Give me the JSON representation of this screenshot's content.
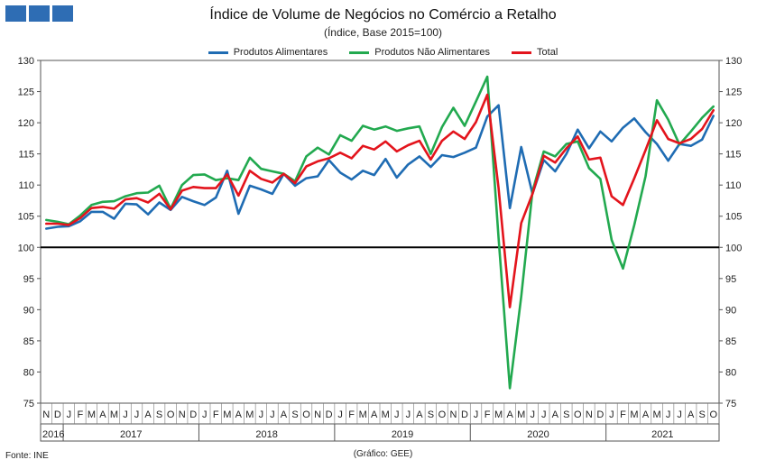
{
  "logo": {
    "color": "#2e6db4"
  },
  "chart_data": {
    "type": "line",
    "title": "Índice de Volume  de Negócios no Comércio a Retalho",
    "subtitle": "(Índice, Base 2015=100)",
    "source": "Fonte: INE",
    "credit": "(Gráfico: GEE)",
    "ylim": [
      75,
      130
    ],
    "yticks": [
      "75",
      "80",
      "85",
      "90",
      "95",
      "100",
      "105",
      "110",
      "115",
      "120",
      "125",
      "130"
    ],
    "reference_line": 100,
    "legend_position": "top-center",
    "grid": false,
    "months": [
      "N",
      "D",
      "J",
      "F",
      "M",
      "A",
      "M",
      "J",
      "J",
      "A",
      "S",
      "O",
      "N",
      "D",
      "J",
      "F",
      "M",
      "A",
      "M",
      "J",
      "J",
      "A",
      "S",
      "O",
      "N",
      "D",
      "J",
      "F",
      "M",
      "A",
      "M",
      "J",
      "J",
      "A",
      "S",
      "O",
      "N",
      "D",
      "J",
      "F",
      "M",
      "A",
      "M",
      "J",
      "J",
      "A",
      "S",
      "O",
      "N",
      "D",
      "J",
      "F",
      "M",
      "A",
      "M",
      "J",
      "J",
      "A",
      "S",
      "O"
    ],
    "years": [
      {
        "label": "2016",
        "start": 0,
        "count": 2
      },
      {
        "label": "2017",
        "start": 2,
        "count": 12
      },
      {
        "label": "2018",
        "start": 14,
        "count": 12
      },
      {
        "label": "2019",
        "start": 26,
        "count": 12
      },
      {
        "label": "2020",
        "start": 38,
        "count": 12
      },
      {
        "label": "2021",
        "start": 50,
        "count": 10
      }
    ],
    "series": [
      {
        "name": "Produtos Alimentares",
        "color": "#1f6cb3",
        "values": [
          103.0,
          103.3,
          103.4,
          104.2,
          105.7,
          105.7,
          104.6,
          107.0,
          106.9,
          105.3,
          107.2,
          106.0,
          108.1,
          107.4,
          106.8,
          108.0,
          112.3,
          105.4,
          109.9,
          109.3,
          108.6,
          111.8,
          109.9,
          111.1,
          111.4,
          114.0,
          112.0,
          110.9,
          112.3,
          111.6,
          114.2,
          111.2,
          113.3,
          114.6,
          112.9,
          114.8,
          114.5,
          115.2,
          116.0,
          121.0,
          122.8,
          106.3,
          116.1,
          108.6,
          114.0,
          112.2,
          115.0,
          118.9,
          115.9,
          118.6,
          117.0,
          119.2,
          120.7,
          118.5,
          116.6,
          113.9,
          116.6,
          116.3,
          117.3,
          121.1
        ]
      },
      {
        "name": "Produtos Não Alimentares",
        "color": "#22a94f",
        "values": [
          104.4,
          104.1,
          103.7,
          105.1,
          106.8,
          107.3,
          107.4,
          108.2,
          108.7,
          108.8,
          109.9,
          106.2,
          110.0,
          111.6,
          111.7,
          110.8,
          111.1,
          110.8,
          114.4,
          112.6,
          112.2,
          111.8,
          110.6,
          114.6,
          116.0,
          114.9,
          118.0,
          117.1,
          119.5,
          118.9,
          119.4,
          118.7,
          119.1,
          119.4,
          115.0,
          119.3,
          122.4,
          119.5,
          123.4,
          127.4,
          101.5,
          77.4,
          92.1,
          109.0,
          115.4,
          114.6,
          116.6,
          117.0,
          112.7,
          111.0,
          101.2,
          96.6,
          103.6,
          111.4,
          123.6,
          120.5,
          116.5,
          118.6,
          120.8,
          122.6
        ]
      },
      {
        "name": "Total",
        "color": "#e3141c",
        "values": [
          103.8,
          103.8,
          103.6,
          104.7,
          106.3,
          106.5,
          106.2,
          107.7,
          107.9,
          107.2,
          108.6,
          106.1,
          109.1,
          109.7,
          109.5,
          109.5,
          111.7,
          108.3,
          112.3,
          111.0,
          110.4,
          111.8,
          110.3,
          113.0,
          113.8,
          114.3,
          115.2,
          114.3,
          116.3,
          115.7,
          117.0,
          115.4,
          116.4,
          117.1,
          114.1,
          117.1,
          118.6,
          117.4,
          120.1,
          124.5,
          109.5,
          90.4,
          103.9,
          108.6,
          114.7,
          113.6,
          115.9,
          117.8,
          114.1,
          114.4,
          108.2,
          106.8,
          111.1,
          115.6,
          120.4,
          117.4,
          116.7,
          117.4,
          119.0,
          122.0
        ]
      }
    ]
  }
}
